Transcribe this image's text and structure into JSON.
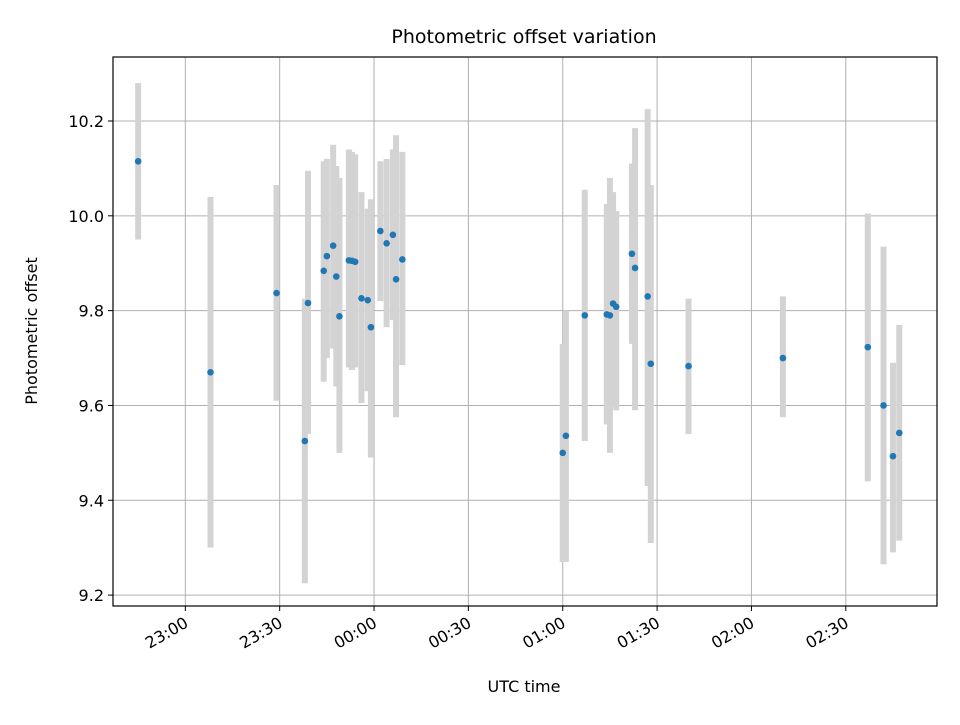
{
  "chart_data": {
    "type": "scatter",
    "title": "Photometric offset variation",
    "xlabel": "UTC time",
    "ylabel": "Photometric offset",
    "xlim": [
      "22:37",
      "02:59"
    ],
    "ylim": [
      9.177,
      10.335
    ],
    "x_ticks": [
      "23:00",
      "23:30",
      "00:00",
      "00:30",
      "01:00",
      "01:30",
      "02:00",
      "02:30"
    ],
    "y_ticks": [
      "9.2",
      "9.4",
      "9.6",
      "9.8",
      "10.0",
      "10.2"
    ],
    "grid": true,
    "colors": {
      "point": "#1f77b4",
      "errorbar": "#d3d3d3",
      "grid": "#b0b0b0"
    },
    "points": [
      {
        "x": "22:45",
        "y": 10.115,
        "yerr_low": 9.95,
        "yerr_high": 10.28
      },
      {
        "x": "23:08",
        "y": 9.67,
        "yerr_low": 9.3,
        "yerr_high": 10.04
      },
      {
        "x": "23:29",
        "y": 9.837,
        "yerr_low": 9.61,
        "yerr_high": 10.065
      },
      {
        "x": "23:38",
        "y": 9.525,
        "yerr_low": 9.225,
        "yerr_high": 9.825
      },
      {
        "x": "23:39",
        "y": 9.816,
        "yerr_low": 9.54,
        "yerr_high": 10.095
      },
      {
        "x": "23:44",
        "y": 9.884,
        "yerr_low": 9.65,
        "yerr_high": 10.115
      },
      {
        "x": "23:45",
        "y": 9.915,
        "yerr_low": 9.7,
        "yerr_high": 10.12
      },
      {
        "x": "23:47",
        "y": 9.937,
        "yerr_low": 9.72,
        "yerr_high": 10.15
      },
      {
        "x": "23:48",
        "y": 9.872,
        "yerr_low": 9.64,
        "yerr_high": 10.105
      },
      {
        "x": "23:49",
        "y": 9.788,
        "yerr_low": 9.5,
        "yerr_high": 10.08
      },
      {
        "x": "23:52",
        "y": 9.906,
        "yerr_low": 9.68,
        "yerr_high": 10.14
      },
      {
        "x": "23:53",
        "y": 9.905,
        "yerr_low": 9.675,
        "yerr_high": 10.135
      },
      {
        "x": "23:54",
        "y": 9.903,
        "yerr_low": 9.68,
        "yerr_high": 10.13
      },
      {
        "x": "23:56",
        "y": 9.826,
        "yerr_low": 9.605,
        "yerr_high": 10.05
      },
      {
        "x": "23:58",
        "y": 9.822,
        "yerr_low": 9.63,
        "yerr_high": 10.015
      },
      {
        "x": "23:59",
        "y": 9.765,
        "yerr_low": 9.49,
        "yerr_high": 10.035
      },
      {
        "x": "00:02",
        "y": 9.968,
        "yerr_low": 9.82,
        "yerr_high": 10.115
      },
      {
        "x": "00:04",
        "y": 9.942,
        "yerr_low": 9.765,
        "yerr_high": 10.12
      },
      {
        "x": "00:06",
        "y": 9.96,
        "yerr_low": 9.78,
        "yerr_high": 10.14
      },
      {
        "x": "00:07",
        "y": 9.866,
        "yerr_low": 9.575,
        "yerr_high": 10.17
      },
      {
        "x": "00:09",
        "y": 9.908,
        "yerr_low": 9.685,
        "yerr_high": 10.135
      },
      {
        "x": "01:00",
        "y": 9.5,
        "yerr_low": 9.27,
        "yerr_high": 9.73
      },
      {
        "x": "01:01",
        "y": 9.536,
        "yerr_low": 9.27,
        "yerr_high": 9.8
      },
      {
        "x": "01:07",
        "y": 9.79,
        "yerr_low": 9.525,
        "yerr_high": 10.055
      },
      {
        "x": "01:14",
        "y": 9.792,
        "yerr_low": 9.56,
        "yerr_high": 10.025
      },
      {
        "x": "01:15",
        "y": 9.79,
        "yerr_low": 9.5,
        "yerr_high": 10.08
      },
      {
        "x": "01:16",
        "y": 9.815,
        "yerr_low": 9.6,
        "yerr_high": 10.05
      },
      {
        "x": "01:17",
        "y": 9.808,
        "yerr_low": 9.59,
        "yerr_high": 10.01
      },
      {
        "x": "01:22",
        "y": 9.92,
        "yerr_low": 9.73,
        "yerr_high": 10.11
      },
      {
        "x": "01:23",
        "y": 9.89,
        "yerr_low": 9.59,
        "yerr_high": 10.185
      },
      {
        "x": "01:27",
        "y": 9.83,
        "yerr_low": 9.43,
        "yerr_high": 10.225
      },
      {
        "x": "01:28",
        "y": 9.688,
        "yerr_low": 9.31,
        "yerr_high": 10.065
      },
      {
        "x": "01:40",
        "y": 9.683,
        "yerr_low": 9.54,
        "yerr_high": 9.825
      },
      {
        "x": "02:10",
        "y": 9.7,
        "yerr_low": 9.575,
        "yerr_high": 9.83
      },
      {
        "x": "02:37",
        "y": 9.723,
        "yerr_low": 9.44,
        "yerr_high": 10.005
      },
      {
        "x": "02:42",
        "y": 9.6,
        "yerr_low": 9.265,
        "yerr_high": 9.935
      },
      {
        "x": "02:45",
        "y": 9.493,
        "yerr_low": 9.29,
        "yerr_high": 9.69
      },
      {
        "x": "02:47",
        "y": 9.542,
        "yerr_low": 9.315,
        "yerr_high": 9.77
      }
    ]
  }
}
